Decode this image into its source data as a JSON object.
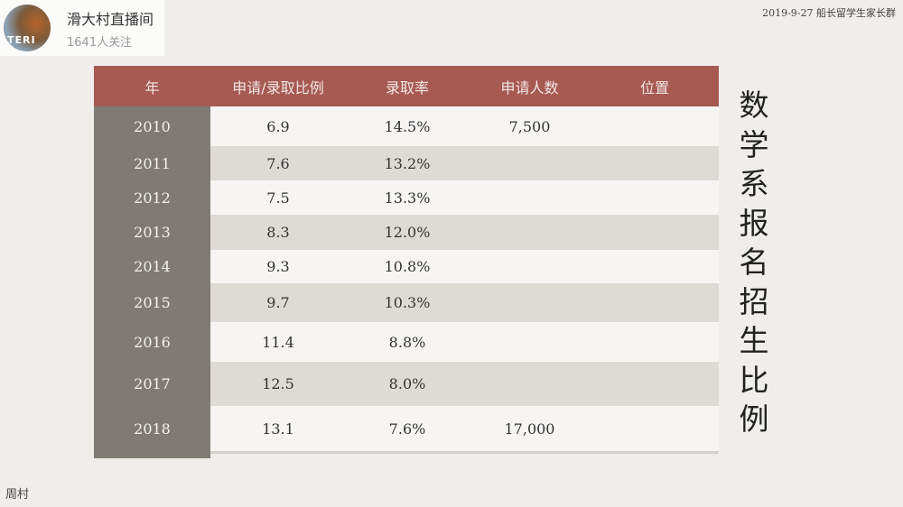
{
  "stream": {
    "title": "滑大村直播间",
    "followers": "1641人关注",
    "avatar_text": "TERI"
  },
  "header_note": "2019-9-27 船长留学生家长群",
  "footer": "周村",
  "side_title": "数学系报名招生比例",
  "table": {
    "columns": [
      "年",
      "申请/录取比例",
      "录取率",
      "申请人数",
      "位置"
    ],
    "rows": [
      [
        "2010",
        "6.9",
        "14.5%",
        "7,500",
        ""
      ],
      [
        "2011",
        "7.6",
        "13.2%",
        "",
        ""
      ],
      [
        "2012",
        "7.5",
        "13.3%",
        "",
        ""
      ],
      [
        "2013",
        "8.3",
        "12.0%",
        "",
        ""
      ],
      [
        "2014",
        "9.3",
        "10.8%",
        "",
        ""
      ],
      [
        "2015",
        "9.7",
        "10.3%",
        "",
        ""
      ],
      [
        "2016",
        "11.4",
        "8.8%",
        "",
        ""
      ],
      [
        "2017",
        "12.5",
        "8.0%",
        "",
        ""
      ],
      [
        "2018",
        "13.1",
        "7.6%",
        "17,000",
        ""
      ]
    ]
  },
  "colors": {
    "header": "#a65a52",
    "year_column": "#7f7b74"
  }
}
